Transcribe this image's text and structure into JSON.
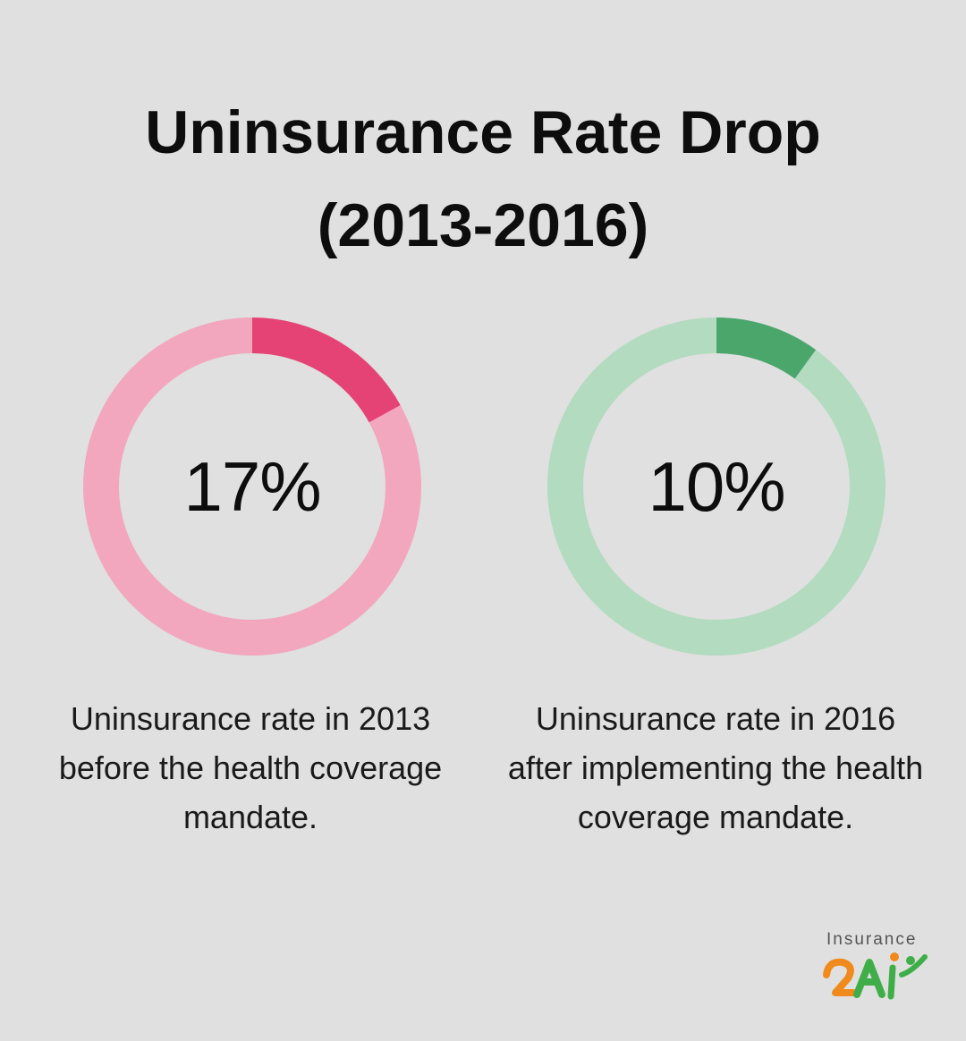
{
  "chart_data": [
    {
      "type": "pie",
      "value": 17,
      "value_label": "17%",
      "caption": "Uninsurance rate in 2013 before the health coverage mandate.",
      "fill_color": "#e54375",
      "track_color": "#f2a7bf"
    },
    {
      "type": "pie",
      "value": 10,
      "value_label": "10%",
      "caption": "Uninsurance rate in 2016 after implementing the health coverage mandate.",
      "fill_color": "#4aa66b",
      "track_color": "#b2dbbf"
    }
  ],
  "title_line1": "Uninsurance Rate Drop",
  "title_line2": "(2013-2016)",
  "logo": {
    "text": "Insurance"
  }
}
